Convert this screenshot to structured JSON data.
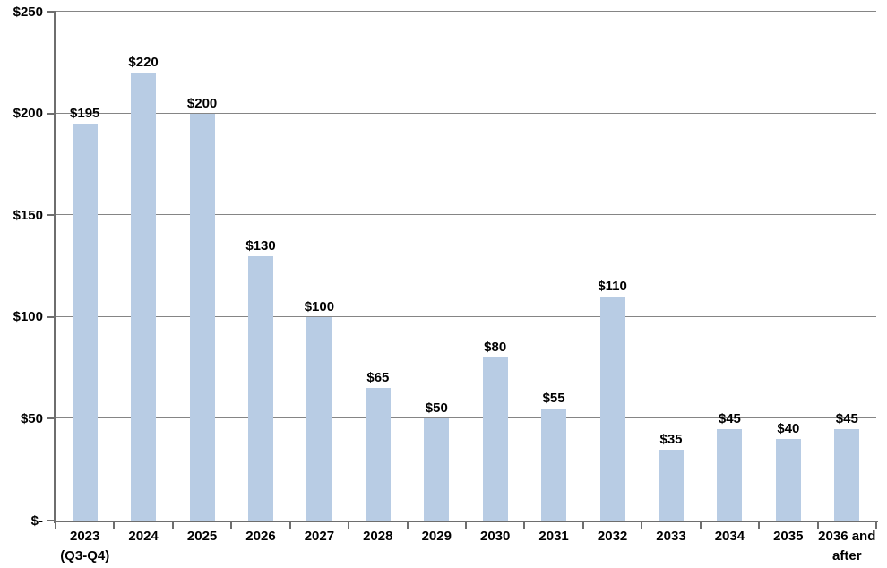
{
  "chart_data": {
    "type": "bar",
    "title": "",
    "xlabel": "",
    "ylabel": "",
    "categories": [
      "2023\n(Q3-Q4)",
      "2024",
      "2025",
      "2026",
      "2027",
      "2028",
      "2029",
      "2030",
      "2031",
      "2032",
      "2033",
      "2034",
      "2035",
      "2036 and\nafter"
    ],
    "values": [
      195,
      220,
      200,
      130,
      100,
      65,
      50,
      80,
      55,
      110,
      35,
      45,
      40,
      45
    ],
    "value_labels": [
      "$195",
      "$220",
      "$200",
      "$130",
      "$100",
      "$65",
      "$50",
      "$80",
      "$55",
      "$110",
      "$35",
      "$45",
      "$40",
      "$45"
    ],
    "ylim": [
      0,
      250
    ],
    "yticks": [
      0,
      50,
      100,
      150,
      200,
      250
    ],
    "ytick_labels": [
      "$-",
      "$50",
      "$100",
      "$150",
      "$200",
      "$250"
    ],
    "grid": true,
    "legend": false,
    "colors": {
      "bar": "#B8CCE4",
      "gridline": "#858585",
      "axis": "#6E6E6E",
      "label": "#000000",
      "background": "#FFFFFF"
    }
  }
}
